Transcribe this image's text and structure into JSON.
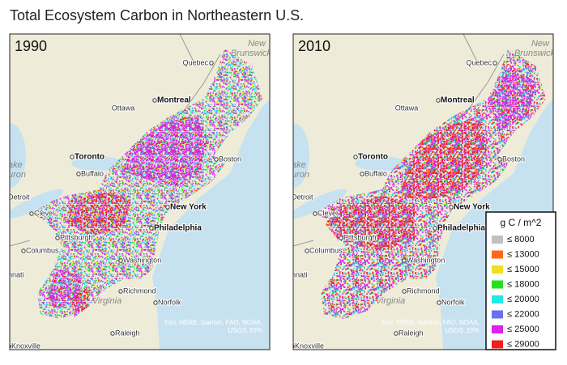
{
  "header": {
    "title": "Total Ecosystem Carbon in Northeastern U.S."
  },
  "panels": [
    {
      "year": "1990"
    },
    {
      "year": "2010"
    }
  ],
  "map": {
    "cities": [
      {
        "label": "Quebec",
        "big": false
      },
      {
        "label": "Montreal",
        "big": true
      },
      {
        "label": "Ottawa",
        "big": false
      },
      {
        "label": "Toronto",
        "big": true
      },
      {
        "label": "Buffalo",
        "big": false
      },
      {
        "label": "Boston",
        "big": false
      },
      {
        "label": "Detroit",
        "big": false
      },
      {
        "label": "Clevel",
        "big": false
      },
      {
        "label": "New York",
        "big": true
      },
      {
        "label": "Philadelphia",
        "big": true
      },
      {
        "label": "Pittsburgh",
        "big": false
      },
      {
        "label": "Columbus",
        "big": false
      },
      {
        "label": "Washington",
        "big": false
      },
      {
        "label": "Richmond",
        "big": false
      },
      {
        "label": "Norfolk",
        "big": false
      },
      {
        "label": "Raleigh",
        "big": false
      },
      {
        "label": "Knoxville",
        "big": false
      },
      {
        "label": "nnati",
        "big": false
      }
    ],
    "regions": [
      "Virginia",
      "New",
      "Brunswick",
      "ake",
      "uron"
    ],
    "attribution": [
      "Esri, HERE, Garmin, FAO, NOAA,",
      "USGS, EPA"
    ]
  },
  "legend": {
    "title": "g C / m^2",
    "items": [
      {
        "label": "≤ 8000",
        "color": "#c0c0c0"
      },
      {
        "label": "≤ 13000",
        "color": "#ff6a1a"
      },
      {
        "label": "≤ 15000",
        "color": "#f0e020"
      },
      {
        "label": "≤ 18000",
        "color": "#22e022"
      },
      {
        "label": "≤ 20000",
        "color": "#22e8e8"
      },
      {
        "label": "≤ 22000",
        "color": "#6a70f0"
      },
      {
        "label": "≤ 25000",
        "color": "#e020f0"
      },
      {
        "label": "≤ 29000",
        "color": "#f02020"
      }
    ]
  }
}
